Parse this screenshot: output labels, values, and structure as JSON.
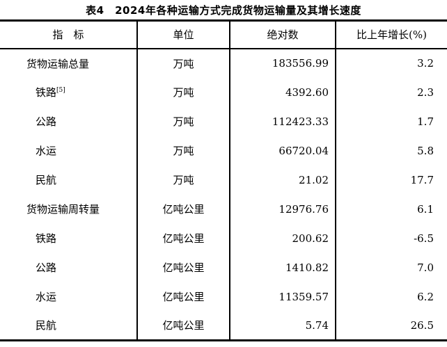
{
  "title": "表4　2024年各种运输方式完成货物运输量及其增长速度",
  "table": {
    "columns": [
      "指　标",
      "单位",
      "绝对数",
      "比上年增长(%)"
    ],
    "rows": [
      {
        "indicator": "货物运输总量",
        "level": "main",
        "unit": "万吨",
        "value": "183556.99",
        "growth": "3.2"
      },
      {
        "indicator": "铁路",
        "footnote": "[5]",
        "level": "sub",
        "unit": "万吨",
        "value": "4392.60",
        "growth": "2.3"
      },
      {
        "indicator": "公路",
        "level": "sub",
        "unit": "万吨",
        "value": "112423.33",
        "growth": "1.7"
      },
      {
        "indicator": "水运",
        "level": "sub",
        "unit": "万吨",
        "value": "66720.04",
        "growth": "5.8"
      },
      {
        "indicator": "民航",
        "level": "sub",
        "unit": "万吨",
        "value": "21.02",
        "growth": "17.7"
      },
      {
        "indicator": "货物运输周转量",
        "level": "main",
        "unit": "亿吨公里",
        "value": "12976.76",
        "growth": "6.1"
      },
      {
        "indicator": "铁路",
        "level": "sub",
        "unit": "亿吨公里",
        "value": "200.62",
        "growth": "-6.5"
      },
      {
        "indicator": "公路",
        "level": "sub",
        "unit": "亿吨公里",
        "value": "1410.82",
        "growth": "7.0"
      },
      {
        "indicator": "水运",
        "level": "sub",
        "unit": "亿吨公里",
        "value": "11359.57",
        "growth": "6.2"
      },
      {
        "indicator": "民航",
        "level": "sub",
        "unit": "亿吨公里",
        "value": "5.74",
        "growth": "26.5"
      }
    ],
    "text_color": "#000000",
    "background_color": "#ffffff",
    "border_color": "#000000"
  }
}
